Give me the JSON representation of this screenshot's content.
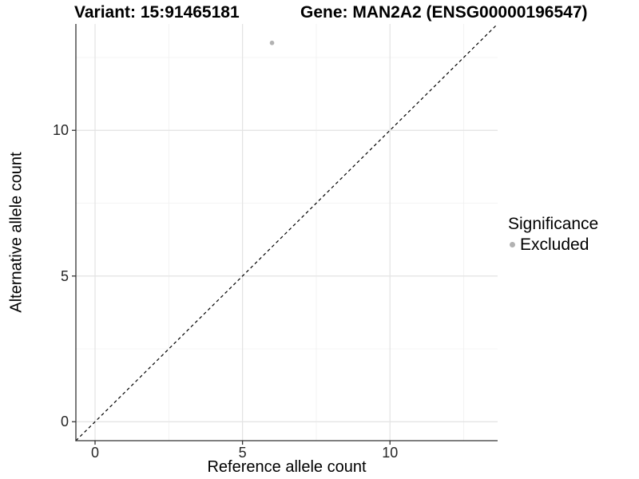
{
  "header": {
    "variant_title": "Variant: 15:91465181",
    "gene_title": "Gene: MAN2A2 (ENSG00000196547)"
  },
  "legend": {
    "title": "Significance",
    "entries": [
      {
        "label": "Excluded",
        "color": "#b2b2b2"
      }
    ]
  },
  "chart_data": {
    "type": "scatter",
    "xlabel": "Reference allele count",
    "ylabel": "Alternative allele count",
    "xlim": [
      -0.65,
      13.65
    ],
    "ylim": [
      -0.65,
      13.65
    ],
    "x_major_ticks": [
      0,
      5,
      10
    ],
    "y_major_ticks": [
      0,
      5,
      10
    ],
    "x_minor_ticks": [
      2.5,
      7.5,
      12.5
    ],
    "y_minor_ticks": [
      2.5,
      7.5,
      12.5
    ],
    "grid": "major+minor",
    "legend_position": "right",
    "points": [
      {
        "x": 6,
        "y": 13,
        "significance": "Excluded",
        "color": "#b2b2b2"
      }
    ],
    "reference_line": {
      "type": "identity",
      "slope": 1,
      "intercept": 0,
      "style": "dashed",
      "color": "#000000"
    },
    "colors": {
      "grid_major": "#e3e3e3",
      "grid_minor": "#f0f0f0",
      "axis_line": "#333333",
      "tick_text": "#262626",
      "point": "#b2b2b2"
    }
  }
}
